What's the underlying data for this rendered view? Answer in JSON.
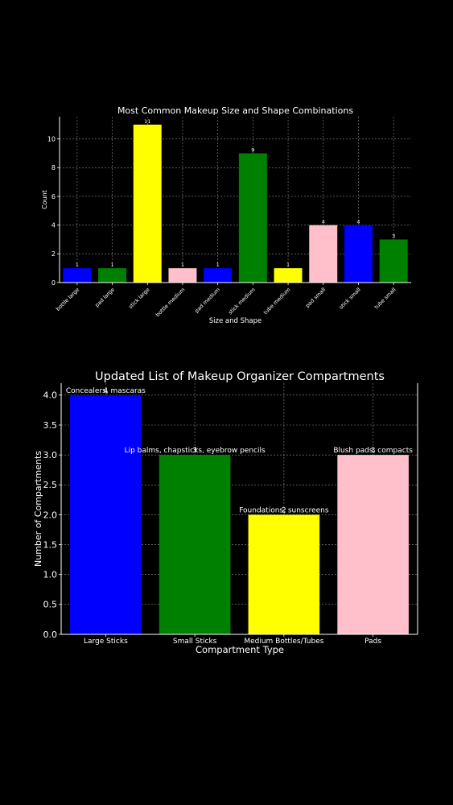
{
  "colors": {
    "background": "#000000",
    "text": "#ffffff",
    "blue": "#0000ff",
    "green": "#008000",
    "yellow": "#ffff00",
    "pink": "#ffc0cb"
  },
  "chart_data": [
    {
      "type": "bar",
      "title": "Most Common Makeup Size and Shape Combinations",
      "xlabel": "Size and Shape",
      "ylabel": "Count",
      "categories": [
        "bottle large",
        "pad large",
        "stick large",
        "bottle medium",
        "pad medium",
        "stick medium",
        "tube medium",
        "pad small",
        "stick small",
        "tube small"
      ],
      "values": [
        1,
        1,
        11,
        1,
        1,
        9,
        1,
        4,
        4,
        3
      ],
      "value_labels": [
        "1",
        "1",
        "11",
        "1",
        "1",
        "9",
        "1",
        "4",
        "4",
        "3"
      ],
      "bar_colors": [
        "blue",
        "green",
        "yellow",
        "pink",
        "blue",
        "green",
        "yellow",
        "pink",
        "blue",
        "green"
      ],
      "ylim": [
        0,
        11.55
      ],
      "yticks": [
        0,
        2,
        4,
        6,
        8,
        10
      ],
      "grid": true,
      "legend": "none"
    },
    {
      "type": "bar",
      "title": "Updated List of Makeup Organizer Compartments",
      "xlabel": "Compartment Type",
      "ylabel": "Number of Compartments",
      "categories": [
        "Large Sticks",
        "Small Sticks",
        "Medium Bottles/Tubes",
        "Pads"
      ],
      "values": [
        4,
        3,
        2,
        3
      ],
      "value_labels": [
        "4",
        "3",
        "2",
        "3"
      ],
      "annotations": [
        "Concealers, mascaras",
        "Lip balms, chapsticks, eyebrow pencils",
        "Foundations, sunscreens",
        "Blush pads, compacts"
      ],
      "bar_colors": [
        "blue",
        "green",
        "yellow",
        "pink"
      ],
      "ylim": [
        0,
        4.2
      ],
      "yticks": [
        0.0,
        0.5,
        1.0,
        1.5,
        2.0,
        2.5,
        3.0,
        3.5,
        4.0
      ],
      "ytick_labels": [
        "0.0",
        "0.5",
        "1.0",
        "1.5",
        "2.0",
        "2.5",
        "3.0",
        "3.5",
        "4.0"
      ],
      "grid": true,
      "legend": "none"
    }
  ]
}
